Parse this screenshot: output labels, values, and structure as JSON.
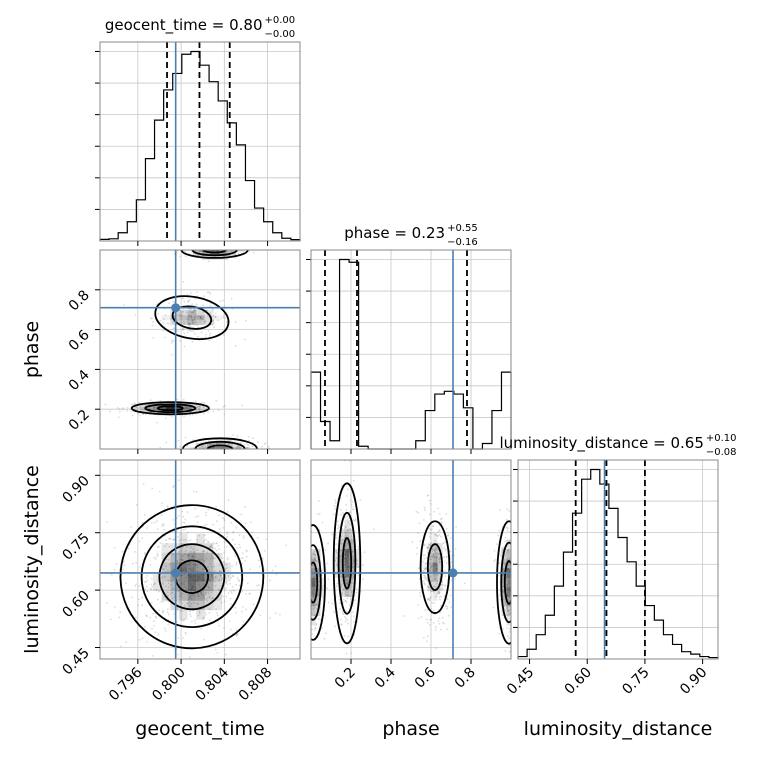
{
  "chart_data": {
    "type": "corner",
    "parameters": [
      {
        "name": "geocent_time",
        "label": "geocent_time",
        "range": [
          0.7925,
          0.811
        ],
        "ticks": [
          0.796,
          0.8,
          0.804,
          0.808
        ],
        "tick_labels": [
          "0.796",
          "0.800",
          "0.804",
          "0.808"
        ],
        "truth": 0.7995,
        "quantiles": [
          0.7987,
          0.8017,
          0.8045
        ],
        "title_main": "geocent_time = 0.80",
        "title_sup": "+0.00",
        "title_sub": "−0.00",
        "hist_counts": [
          0.6,
          0.8,
          3,
          7,
          15,
          30,
          44,
          55,
          61,
          68,
          69,
          64,
          58,
          51,
          43,
          35,
          22,
          12,
          7,
          3,
          1,
          0.5
        ]
      },
      {
        "name": "phase",
        "label": "phase",
        "range": [
          0.0,
          1.0
        ],
        "ticks": [
          0.2,
          0.4,
          0.6,
          0.8
        ],
        "tick_labels": [
          "0.2",
          "0.4",
          "0.6",
          "0.8"
        ],
        "truth": 0.71,
        "quantiles": [
          0.07,
          0.23,
          0.78
        ],
        "title_main": "phase = 0.23",
        "title_sup": "+0.55",
        "title_sub": "−0.16",
        "hist_counts": [
          28,
          10,
          3,
          69,
          68,
          1,
          0,
          0,
          0,
          0,
          0,
          3,
          14,
          20,
          21,
          20,
          15,
          0,
          2,
          14,
          28
        ]
      },
      {
        "name": "luminosity_distance",
        "label": "luminosity_distance",
        "range": [
          0.42,
          0.94
        ],
        "ticks": [
          0.45,
          0.6,
          0.75,
          0.9
        ],
        "tick_labels": [
          "0.45",
          "0.60",
          "0.75",
          "0.90"
        ],
        "truth": 0.645,
        "quantiles": [
          0.57,
          0.65,
          0.75
        ],
        "title_main": "luminosity_distance = 0.65",
        "title_sup": "+0.10",
        "title_sub": "−0.08",
        "hist_counts": [
          0.5,
          2,
          5,
          9,
          15,
          22,
          30,
          37,
          39,
          36,
          31,
          25,
          20,
          15,
          11,
          8,
          5,
          3,
          1.5,
          1,
          0.5,
          0.3
        ]
      }
    ],
    "axis_labels": {
      "left": [
        "phase",
        "luminosity_distance"
      ],
      "bottom": [
        "geocent_time",
        "phase",
        "luminosity_distance"
      ]
    },
    "grid": true,
    "colors": {
      "truth": "#4a7fb0",
      "hist": "#000000",
      "scatter": "#999999",
      "density": "#000000"
    }
  }
}
